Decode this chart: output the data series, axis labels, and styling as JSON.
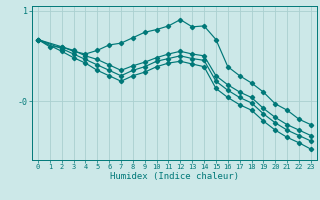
{
  "xlabel": "Humidex (Indice chaleur)",
  "x_ticks": [
    0,
    1,
    2,
    3,
    4,
    5,
    6,
    7,
    8,
    9,
    10,
    11,
    12,
    13,
    14,
    15,
    16,
    17,
    18,
    19,
    20,
    21,
    22,
    23
  ],
  "xlim": [
    -0.5,
    23.5
  ],
  "ylim": [
    -0.65,
    1.05
  ],
  "bg_color": "#cce8e8",
  "line_color": "#007878",
  "grid_color": "#aad0d0",
  "series": [
    {
      "x": [
        0,
        1,
        2,
        3,
        4,
        5,
        6,
        7,
        8,
        9,
        10,
        11,
        12,
        13,
        14,
        15,
        16,
        17,
        18,
        19,
        20,
        21,
        22,
        23
      ],
      "y": [
        0.68,
        0.6,
        0.6,
        0.55,
        0.52,
        0.56,
        0.62,
        0.64,
        0.7,
        0.76,
        0.79,
        0.83,
        0.9,
        0.82,
        0.83,
        0.68,
        0.38,
        0.28,
        0.2,
        0.1,
        -0.03,
        -0.1,
        -0.2,
        -0.26
      ]
    },
    {
      "x": [
        0,
        2,
        3,
        4,
        5,
        6,
        7,
        8,
        9,
        10,
        11,
        12,
        13,
        14,
        15,
        16,
        17,
        18,
        19,
        20,
        21,
        22,
        23
      ],
      "y": [
        0.68,
        0.6,
        0.56,
        0.5,
        0.46,
        0.4,
        0.34,
        0.39,
        0.43,
        0.48,
        0.52,
        0.55,
        0.52,
        0.5,
        0.28,
        0.18,
        0.1,
        0.04,
        -0.08,
        -0.18,
        -0.26,
        -0.32,
        -0.38
      ]
    },
    {
      "x": [
        0,
        2,
        3,
        4,
        5,
        6,
        7,
        8,
        9,
        10,
        11,
        12,
        13,
        14,
        15,
        16,
        17,
        18,
        19,
        20,
        21,
        22,
        23
      ],
      "y": [
        0.68,
        0.58,
        0.52,
        0.46,
        0.4,
        0.34,
        0.28,
        0.34,
        0.38,
        0.44,
        0.47,
        0.5,
        0.47,
        0.45,
        0.22,
        0.12,
        0.04,
        -0.02,
        -0.14,
        -0.24,
        -0.32,
        -0.38,
        -0.44
      ]
    },
    {
      "x": [
        0,
        2,
        3,
        4,
        5,
        6,
        7,
        8,
        9,
        10,
        11,
        12,
        13,
        14,
        15,
        16,
        17,
        18,
        19,
        20,
        21,
        22,
        23
      ],
      "y": [
        0.68,
        0.55,
        0.48,
        0.42,
        0.34,
        0.28,
        0.22,
        0.28,
        0.32,
        0.38,
        0.42,
        0.44,
        0.41,
        0.38,
        0.14,
        0.04,
        -0.04,
        -0.1,
        -0.22,
        -0.32,
        -0.4,
        -0.46,
        -0.53
      ]
    }
  ]
}
